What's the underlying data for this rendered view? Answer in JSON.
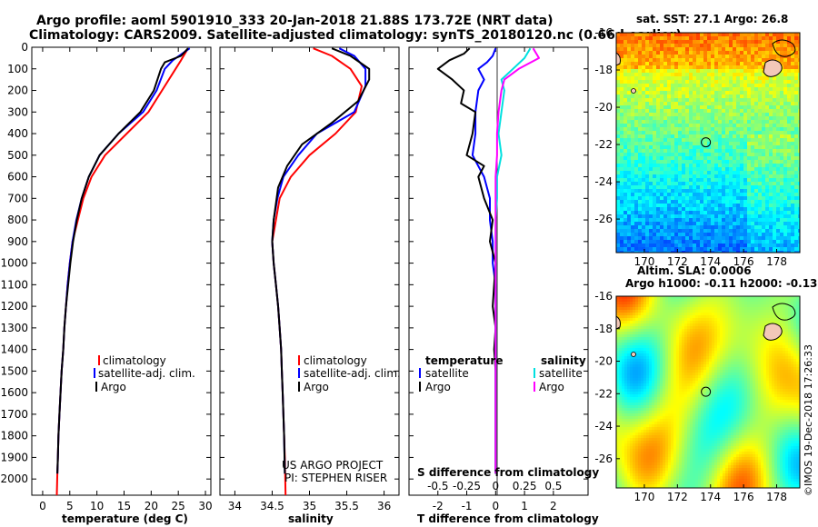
{
  "header": {
    "line1": "Argo profile: aoml 5901910_333 20-Jan-2018 21.88S 173.72E (NRT data)",
    "line2": "Climatology: CARS2009. Satellite-adjusted climatology: synTS_20180120.nc (0.66d earlier)"
  },
  "colors": {
    "climatology": "#ff0000",
    "satellite": "#0000ff",
    "argo": "#000000",
    "sat_salinity": "#00e0e0",
    "argo_salinity": "#ff00ff"
  },
  "chart_data": [
    {
      "type": "line",
      "panel": "temperature",
      "xlabel": "temperature (deg C)",
      "ylabel": "",
      "xlim": [
        -2,
        31
      ],
      "ylim": [
        2075,
        0
      ],
      "xticks": [
        0,
        5,
        10,
        15,
        20,
        25,
        30
      ],
      "yticks": [
        0,
        100,
        200,
        300,
        400,
        500,
        600,
        700,
        800,
        900,
        1000,
        1100,
        1200,
        1300,
        1400,
        1500,
        1600,
        1700,
        1800,
        1900,
        2000
      ],
      "legend": [
        "climatology",
        "satellite-adj. clim.",
        "Argo"
      ],
      "series": [
        {
          "name": "climatology",
          "color": "#ff0000",
          "points": [
            [
              26.8,
              5
            ],
            [
              25.5,
              60
            ],
            [
              24.5,
              100
            ],
            [
              22,
              200
            ],
            [
              19.5,
              300
            ],
            [
              15.5,
              400
            ],
            [
              11.5,
              500
            ],
            [
              9,
              600
            ],
            [
              7.5,
              700
            ],
            [
              6.5,
              800
            ],
            [
              5.5,
              900
            ],
            [
              5,
              1000
            ],
            [
              4.6,
              1100
            ],
            [
              4.3,
              1200
            ],
            [
              4,
              1300
            ],
            [
              3.8,
              1400
            ],
            [
              3.5,
              1500
            ],
            [
              3.3,
              1600
            ],
            [
              3.1,
              1700
            ],
            [
              2.9,
              1800
            ],
            [
              2.8,
              1900
            ],
            [
              2.7,
              1975
            ],
            [
              2.6,
              2075
            ]
          ]
        },
        {
          "name": "satellite-adj. clim.",
          "color": "#0000ff",
          "points": [
            [
              27.1,
              5
            ],
            [
              24,
              60
            ],
            [
              22.5,
              100
            ],
            [
              21,
              200
            ],
            [
              18.5,
              300
            ],
            [
              14,
              400
            ],
            [
              10.5,
              500
            ],
            [
              8.5,
              600
            ],
            [
              7.2,
              700
            ],
            [
              6.2,
              800
            ],
            [
              5.5,
              900
            ],
            [
              5,
              1000
            ],
            [
              4.6,
              1100
            ],
            [
              4.3,
              1200
            ],
            [
              4,
              1300
            ],
            [
              3.8,
              1400
            ],
            [
              3.5,
              1500
            ],
            [
              3.3,
              1600
            ],
            [
              3.1,
              1700
            ],
            [
              2.9,
              1800
            ],
            [
              2.8,
              1900
            ],
            [
              2.7,
              1975
            ]
          ]
        },
        {
          "name": "Argo",
          "color": "#000000",
          "points": [
            [
              26.8,
              5
            ],
            [
              25.5,
              40
            ],
            [
              22.5,
              70
            ],
            [
              21.8,
              100
            ],
            [
              20.5,
              200
            ],
            [
              18,
              300
            ],
            [
              14,
              400
            ],
            [
              10.5,
              500
            ],
            [
              8.5,
              600
            ],
            [
              7.2,
              700
            ],
            [
              6.3,
              800
            ],
            [
              5.6,
              900
            ],
            [
              5.1,
              1000
            ],
            [
              4.7,
              1100
            ],
            [
              4.3,
              1200
            ],
            [
              4,
              1300
            ],
            [
              3.8,
              1400
            ],
            [
              3.5,
              1500
            ],
            [
              3.3,
              1600
            ],
            [
              3.1,
              1700
            ],
            [
              2.9,
              1800
            ],
            [
              2.8,
              1900
            ],
            [
              2.7,
              1975
            ]
          ]
        }
      ]
    },
    {
      "type": "line",
      "panel": "salinity",
      "xlabel": "salinity",
      "xlim": [
        33.8,
        36.2
      ],
      "ylim": [
        2075,
        0
      ],
      "xticks": [
        34,
        34.5,
        35,
        35.5,
        36
      ],
      "legend": [
        "climatology",
        "satellite-adj. clim.",
        "Argo"
      ],
      "annotation": [
        "US ARGO PROJECT",
        "PI: STEPHEN RISER"
      ],
      "series": [
        {
          "name": "climatology",
          "color": "#ff0000",
          "points": [
            [
              35.05,
              5
            ],
            [
              35.3,
              40
            ],
            [
              35.55,
              100
            ],
            [
              35.7,
              180
            ],
            [
              35.62,
              300
            ],
            [
              35.35,
              400
            ],
            [
              35.0,
              500
            ],
            [
              34.75,
              600
            ],
            [
              34.6,
              700
            ],
            [
              34.55,
              800
            ],
            [
              34.5,
              900
            ],
            [
              34.52,
              1000
            ],
            [
              34.55,
              1100
            ],
            [
              34.58,
              1200
            ],
            [
              34.6,
              1300
            ],
            [
              34.62,
              1400
            ],
            [
              34.63,
              1500
            ],
            [
              34.64,
              1600
            ],
            [
              34.65,
              1700
            ],
            [
              34.66,
              1800
            ],
            [
              34.67,
              1900
            ],
            [
              34.68,
              2075
            ]
          ]
        },
        {
          "name": "satellite-adj. clim.",
          "color": "#0000ff",
          "points": [
            [
              35.4,
              5
            ],
            [
              35.6,
              40
            ],
            [
              35.75,
              100
            ],
            [
              35.75,
              180
            ],
            [
              35.6,
              300
            ],
            [
              35.1,
              400
            ],
            [
              34.85,
              500
            ],
            [
              34.65,
              600
            ],
            [
              34.57,
              700
            ],
            [
              34.52,
              800
            ],
            [
              34.5,
              900
            ],
            [
              34.52,
              1000
            ],
            [
              34.55,
              1100
            ],
            [
              34.58,
              1200
            ],
            [
              34.6,
              1300
            ],
            [
              34.62,
              1400
            ],
            [
              34.63,
              1500
            ],
            [
              34.64,
              1600
            ],
            [
              34.65,
              1700
            ],
            [
              34.66,
              1800
            ],
            [
              34.67,
              1975
            ]
          ]
        },
        {
          "name": "Argo",
          "color": "#000000",
          "points": [
            [
              35.3,
              5
            ],
            [
              35.55,
              40
            ],
            [
              35.8,
              100
            ],
            [
              35.8,
              150
            ],
            [
              35.65,
              250
            ],
            [
              35.3,
              350
            ],
            [
              34.9,
              450
            ],
            [
              34.7,
              550
            ],
            [
              34.58,
              650
            ],
            [
              34.52,
              800
            ],
            [
              34.5,
              900
            ],
            [
              34.52,
              1000
            ],
            [
              34.55,
              1100
            ],
            [
              34.58,
              1200
            ],
            [
              34.6,
              1300
            ],
            [
              34.62,
              1400
            ],
            [
              34.63,
              1500
            ],
            [
              34.64,
              1600
            ],
            [
              34.65,
              1700
            ],
            [
              34.66,
              1800
            ],
            [
              34.67,
              1975
            ]
          ]
        }
      ]
    },
    {
      "type": "line",
      "panel": "difference",
      "xlabel": "T difference from climatology",
      "xlabel_top": "S difference from climatology",
      "xlim": [
        -3,
        3.2
      ],
      "ylim": [
        2075,
        0
      ],
      "xticks": [
        -2,
        -1,
        0,
        1,
        2
      ],
      "xticks_top": [
        -0.5,
        -0.25,
        0,
        0.25,
        0.5
      ],
      "legend_left_title": "temperature",
      "legend_left": [
        "satellite",
        "Argo"
      ],
      "legend_right_title": "salinity",
      "legend_right": [
        "satellite",
        "Argo"
      ],
      "series": [
        {
          "name": "T satellite",
          "color": "#0000ff",
          "points": [
            [
              0,
              5
            ],
            [
              -0.1,
              40
            ],
            [
              -0.3,
              70
            ],
            [
              -0.6,
              100
            ],
            [
              -0.4,
              150
            ],
            [
              -0.6,
              200
            ],
            [
              -0.7,
              300
            ],
            [
              -0.7,
              400
            ],
            [
              -0.8,
              500
            ],
            [
              -0.4,
              600
            ],
            [
              -0.2,
              700
            ],
            [
              -0.2,
              800
            ],
            [
              -0.1,
              900
            ],
            [
              -0.1,
              1000
            ],
            [
              0,
              1100
            ],
            [
              0,
              1200
            ],
            [
              0,
              1300
            ],
            [
              0,
              1400
            ],
            [
              0,
              1500
            ],
            [
              0,
              1600
            ],
            [
              0,
              1700
            ],
            [
              0,
              1800
            ],
            [
              0,
              1975
            ]
          ]
        },
        {
          "name": "T Argo",
          "color": "#000000",
          "points": [
            [
              -0.9,
              5
            ],
            [
              -1.1,
              30
            ],
            [
              -1.6,
              60
            ],
            [
              -2.0,
              100
            ],
            [
              -1.5,
              150
            ],
            [
              -1.1,
              200
            ],
            [
              -1.2,
              260
            ],
            [
              -0.7,
              300
            ],
            [
              -0.8,
              400
            ],
            [
              -1.0,
              500
            ],
            [
              -0.4,
              550
            ],
            [
              -0.6,
              600
            ],
            [
              -0.4,
              700
            ],
            [
              -0.1,
              800
            ],
            [
              -0.2,
              900
            ],
            [
              0,
              1000
            ],
            [
              -0.05,
              1100
            ],
            [
              -0.1,
              1200
            ],
            [
              0,
              1300
            ],
            [
              -0.05,
              1400
            ],
            [
              0,
              1500
            ],
            [
              0,
              1600
            ],
            [
              0,
              1700
            ],
            [
              0,
              1800
            ],
            [
              0,
              1975
            ]
          ]
        },
        {
          "name": "S satellite",
          "color": "#00e0e0",
          "points": [
            [
              1.2,
              5
            ],
            [
              1.0,
              50
            ],
            [
              0.6,
              100
            ],
            [
              0.2,
              150
            ],
            [
              0.3,
              200
            ],
            [
              0.2,
              300
            ],
            [
              0.1,
              400
            ],
            [
              0.2,
              500
            ],
            [
              0.05,
              600
            ],
            [
              0.05,
              700
            ],
            [
              0,
              800
            ],
            [
              0,
              900
            ],
            [
              0,
              1000
            ],
            [
              0,
              1100
            ],
            [
              0,
              1200
            ],
            [
              0,
              1300
            ],
            [
              0,
              1400
            ],
            [
              0,
              1500
            ],
            [
              0,
              1600
            ],
            [
              0,
              1700
            ],
            [
              0,
              1800
            ],
            [
              0,
              1975
            ]
          ]
        },
        {
          "name": "S Argo",
          "color": "#ff00ff",
          "points": [
            [
              1.3,
              5
            ],
            [
              1.5,
              50
            ],
            [
              0.8,
              100
            ],
            [
              0.3,
              150
            ],
            [
              0.2,
              200
            ],
            [
              0.1,
              300
            ],
            [
              0.05,
              400
            ],
            [
              0.05,
              500
            ],
            [
              0,
              600
            ],
            [
              0,
              700
            ],
            [
              0,
              800
            ],
            [
              0,
              900
            ],
            [
              0,
              1000
            ],
            [
              0,
              1100
            ],
            [
              0,
              1200
            ],
            [
              0,
              1300
            ],
            [
              0,
              1400
            ],
            [
              0,
              1500
            ],
            [
              0,
              1600
            ],
            [
              0,
              1700
            ],
            [
              0,
              1800
            ],
            [
              0,
              1975
            ]
          ]
        }
      ]
    },
    {
      "type": "heatmap",
      "panel": "sst_map",
      "title": "sat. SST: 27.1 Argo: 26.8",
      "xlim": [
        168.3,
        179.4
      ],
      "ylim": [
        -27.8,
        -16
      ],
      "xticks": [
        170,
        172,
        174,
        176,
        178
      ],
      "yticks": [
        -16,
        -18,
        -20,
        -22,
        -24,
        -26
      ],
      "profile_location": [
        173.72,
        -21.88
      ]
    },
    {
      "type": "heatmap",
      "panel": "sla_map",
      "title": "Altim. SLA: 0.0006",
      "subtitle": "Argo h1000: -0.11 h2000: -0.13",
      "xlim": [
        168.3,
        179.4
      ],
      "ylim": [
        -27.8,
        -16
      ],
      "xticks": [
        170,
        172,
        174,
        176,
        178
      ],
      "yticks": [
        -16,
        -18,
        -20,
        -22,
        -24,
        -26
      ],
      "profile_location": [
        173.72,
        -21.88
      ]
    }
  ],
  "footer_stamp": "©IMOS 19-Dec-2018 17:26:33"
}
